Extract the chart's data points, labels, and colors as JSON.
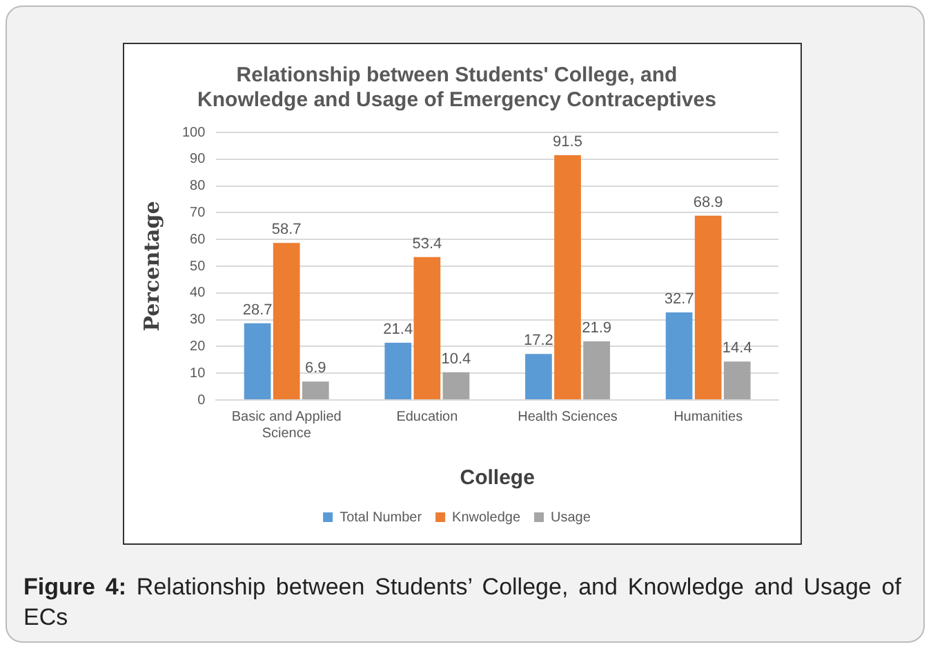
{
  "chart_data": {
    "type": "bar",
    "title": "Relationship between Students' College, and Knowledge and Usage of Emergency Contraceptives",
    "xlabel": "College",
    "ylabel": "Percentage",
    "categories": [
      "Basic and Applied Science",
      "Education",
      "Health Sciences",
      "Humanities"
    ],
    "series": [
      {
        "name": "Total Number",
        "color": "#5b9bd5",
        "values": [
          28.7,
          21.4,
          17.2,
          32.7
        ]
      },
      {
        "name": "Knwoledge",
        "color": "#ed7d31",
        "values": [
          58.7,
          53.4,
          91.5,
          68.9
        ]
      },
      {
        "name": "Usage",
        "color": "#a5a5a5",
        "values": [
          6.9,
          10.4,
          21.9,
          14.4
        ]
      }
    ],
    "ylim": [
      0,
      100
    ],
    "yticks": [
      0,
      10,
      20,
      30,
      40,
      50,
      60,
      70,
      80,
      90,
      100
    ],
    "grid": "y",
    "legend": "bottom",
    "data_labels": true,
    "annotations": [
      "Figure 4: Relationship between Students’ College, and Knowledge and Usage of ECs"
    ]
  }
}
